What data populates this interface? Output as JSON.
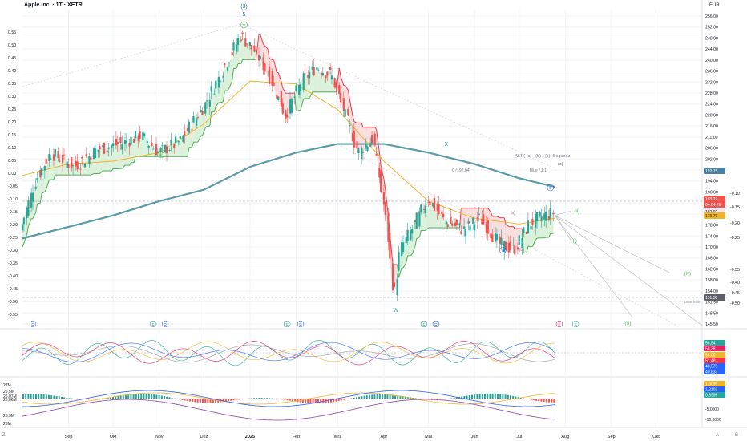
{
  "header": {
    "title": "Apple Inc. · 1T · XETR",
    "currency": "EUR"
  },
  "corner": {
    "left": "Z",
    "right_a": "A",
    "right_b": "B"
  },
  "colors": {
    "up": "#26a69a",
    "down": "#ef5350",
    "ma_slow": "#5b9aa9",
    "ma_fast": "#f0b429",
    "stop_up": "#4caf50",
    "stop_down": "#f23645",
    "fill_up": "#cfeccf",
    "fill_down": "#f8d2d2",
    "wave": "#9598a1"
  },
  "chart_data": [
    {
      "type": "line",
      "title": "Apple Inc. · 1T · XETR",
      "currency": "EUR",
      "months": [
        "Sep",
        "Okt",
        "Nov",
        "Dez",
        "2025",
        "Feb",
        "Mrz",
        "Apr",
        "Mai",
        "Jun",
        "Jul",
        "Aug",
        "Sep",
        "Okt"
      ],
      "x_dates": [
        "2024-08-01",
        "2024-09-01",
        "2024-10-01",
        "2024-11-01",
        "2024-12-01",
        "2025-01-01",
        "2025-02-01",
        "2025-03-01",
        "2025-04-01",
        "2025-05-01",
        "2025-06-01",
        "2025-07-01",
        "2025-08-01",
        "2025-09-01",
        "2025-10-01",
        "2025-11-01"
      ],
      "right_ticks": [
        "256,00",
        "252,00",
        "248,00",
        "244,00",
        "240,00",
        "236,00",
        "232,00",
        "228,00",
        "224,00",
        "220,00",
        "216,00",
        "211,00",
        "206,00",
        "202,00",
        "198,00",
        "194,00",
        "190,00",
        "186,00",
        "182,00",
        "178,00",
        "174,00",
        "170,00",
        "166,00",
        "162,00",
        "158,00",
        "154,00",
        "151,50",
        "148,50",
        "145,50"
      ],
      "left_ticks": [
        "0.55",
        "0.50",
        "0.45",
        "0.40",
        "0.35",
        "0.30",
        "0.25",
        "0.20",
        "0.15",
        "0.10",
        "0.05",
        "0.00",
        "-0.05",
        "-0.10",
        "-0.15",
        "-0.20",
        "-0.25",
        "-0.30",
        "-0.35",
        "-0.40",
        "-0.45",
        "-0.50",
        "-0.55"
      ],
      "right_ticks_b": [
        "-0.10",
        "-0.15",
        "-0.20",
        "-0.25",
        "-0.35",
        "-0.40",
        "-0.45",
        "-0.50"
      ],
      "price_x": [
        "2024-08-01",
        "2024-08-10",
        "2024-08-20",
        "2024-09-05",
        "2024-09-20",
        "2024-10-05",
        "2024-10-20",
        "2024-11-01",
        "2024-11-15",
        "2024-12-01",
        "2024-12-15",
        "2024-12-26",
        "2025-01-05",
        "2025-01-15",
        "2025-01-25",
        "2025-02-05",
        "2025-02-15",
        "2025-02-25",
        "2025-03-05",
        "2025-03-15",
        "2025-03-25",
        "2025-04-03",
        "2025-04-08",
        "2025-04-12",
        "2025-04-20",
        "2025-05-01",
        "2025-05-12",
        "2025-05-25",
        "2025-06-05",
        "2025-06-18",
        "2025-06-28",
        "2025-07-08",
        "2025-07-18",
        "2025-07-25"
      ],
      "price_y": [
        181,
        196,
        206,
        201,
        207,
        209,
        212,
        206,
        210,
        222,
        236,
        247,
        241,
        232,
        219,
        231,
        236,
        233,
        221,
        206,
        211,
        181,
        155,
        172,
        179,
        190,
        182,
        179,
        183,
        174,
        172,
        181,
        184,
        185
      ],
      "series": [
        {
          "name": "",
          "role": "slow-ma",
          "x": [
            "2024-08-01",
            "2024-09-01",
            "2024-10-01",
            "2024-11-01",
            "2024-12-01",
            "2025-01-01",
            "2025-02-01",
            "2025-03-01",
            "2025-04-01",
            "2025-05-01",
            "2025-06-01",
            "2025-07-01",
            "2025-07-25"
          ],
          "y": [
            176,
            180,
            184,
            189,
            193,
            201,
            206,
            209,
            209,
            206,
            202,
            197,
            194
          ]
        },
        {
          "name": "",
          "role": "fast-ma",
          "x": [
            "2024-08-01",
            "2024-09-01",
            "2024-10-01",
            "2024-11-01",
            "2024-12-01",
            "2025-01-01",
            "2025-02-01",
            "2025-03-01",
            "2025-04-01",
            "2025-05-01",
            "2025-06-01",
            "2025-07-01",
            "2025-07-25"
          ],
          "y": [
            198,
            202,
            203,
            206,
            216,
            231,
            230,
            221,
            203,
            189,
            183,
            181,
            183
          ]
        }
      ],
      "labels": {
        "wave_top": "(3)",
        "wave_top_num": "5",
        "wave_v": "v",
        "wave_iv": "iv",
        "x_label": "X",
        "x_value": "0 (192,04)",
        "w_label": "W",
        "wave_a": "a",
        "wave_b": "b",
        "wave_c": "(c)",
        "wave_a2": "(a)",
        "wave_b2": "(b)",
        "alt": "ALT ( (a) - (b) - (c) -Sequenz",
        "blue_label": "Blue / 1:1",
        "future_ii": "(ii)",
        "future_i": "(i)",
        "future_iii": "(iii)",
        "future_iv": "(iv)",
        "undercover": "Unterhalb"
      },
      "last_price_labels": [
        {
          "text": "192,75",
          "bg": "#4a7f9f",
          "color": "#ffffff"
        },
        {
          "text": "183,22",
          "bg": "#ef5350",
          "color": "#ffffff"
        },
        {
          "text": "04:04:26",
          "bg": "#ef5350",
          "color": "#ffffff"
        },
        {
          "text": "182,92",
          "bg": "#fbe3e3",
          "color": "#131722"
        },
        {
          "text": "179,79",
          "bg": "#f0b429",
          "color": "#131722"
        },
        {
          "text": "151,38",
          "bg": "#5d606b",
          "color": "#ffffff"
        }
      ],
      "events": [
        "D",
        "E",
        "D",
        "E",
        "D",
        "E",
        "D",
        "F",
        "E"
      ]
    },
    {
      "type": "line",
      "title": "",
      "values_labels": [
        {
          "text": "58,54",
          "bg": "#26a69a"
        },
        {
          "text": "58,38",
          "bg": "#e91e63"
        },
        {
          "text": "56,00",
          "bg": "#f0b429"
        },
        {
          "text": "51,48",
          "bg": "#f23645"
        },
        {
          "text": "48,575",
          "bg": "#2962ff"
        },
        {
          "text": "40,833",
          "bg": "#2962ff"
        }
      ]
    },
    {
      "type": "bar",
      "title": "",
      "left_ticks": [
        "27M",
        "26,5M",
        "26,07M",
        "26,06M",
        "25,5M",
        "25M"
      ],
      "right_ticks": [
        "-5,0000",
        "-10,0000"
      ],
      "values_labels": [
        {
          "text": "1,6099",
          "bg": "#f0b429"
        },
        {
          "text": "1,2103",
          "bg": "#2962ff"
        },
        {
          "text": "0,3996",
          "bg": "#26a69a"
        }
      ]
    }
  ]
}
